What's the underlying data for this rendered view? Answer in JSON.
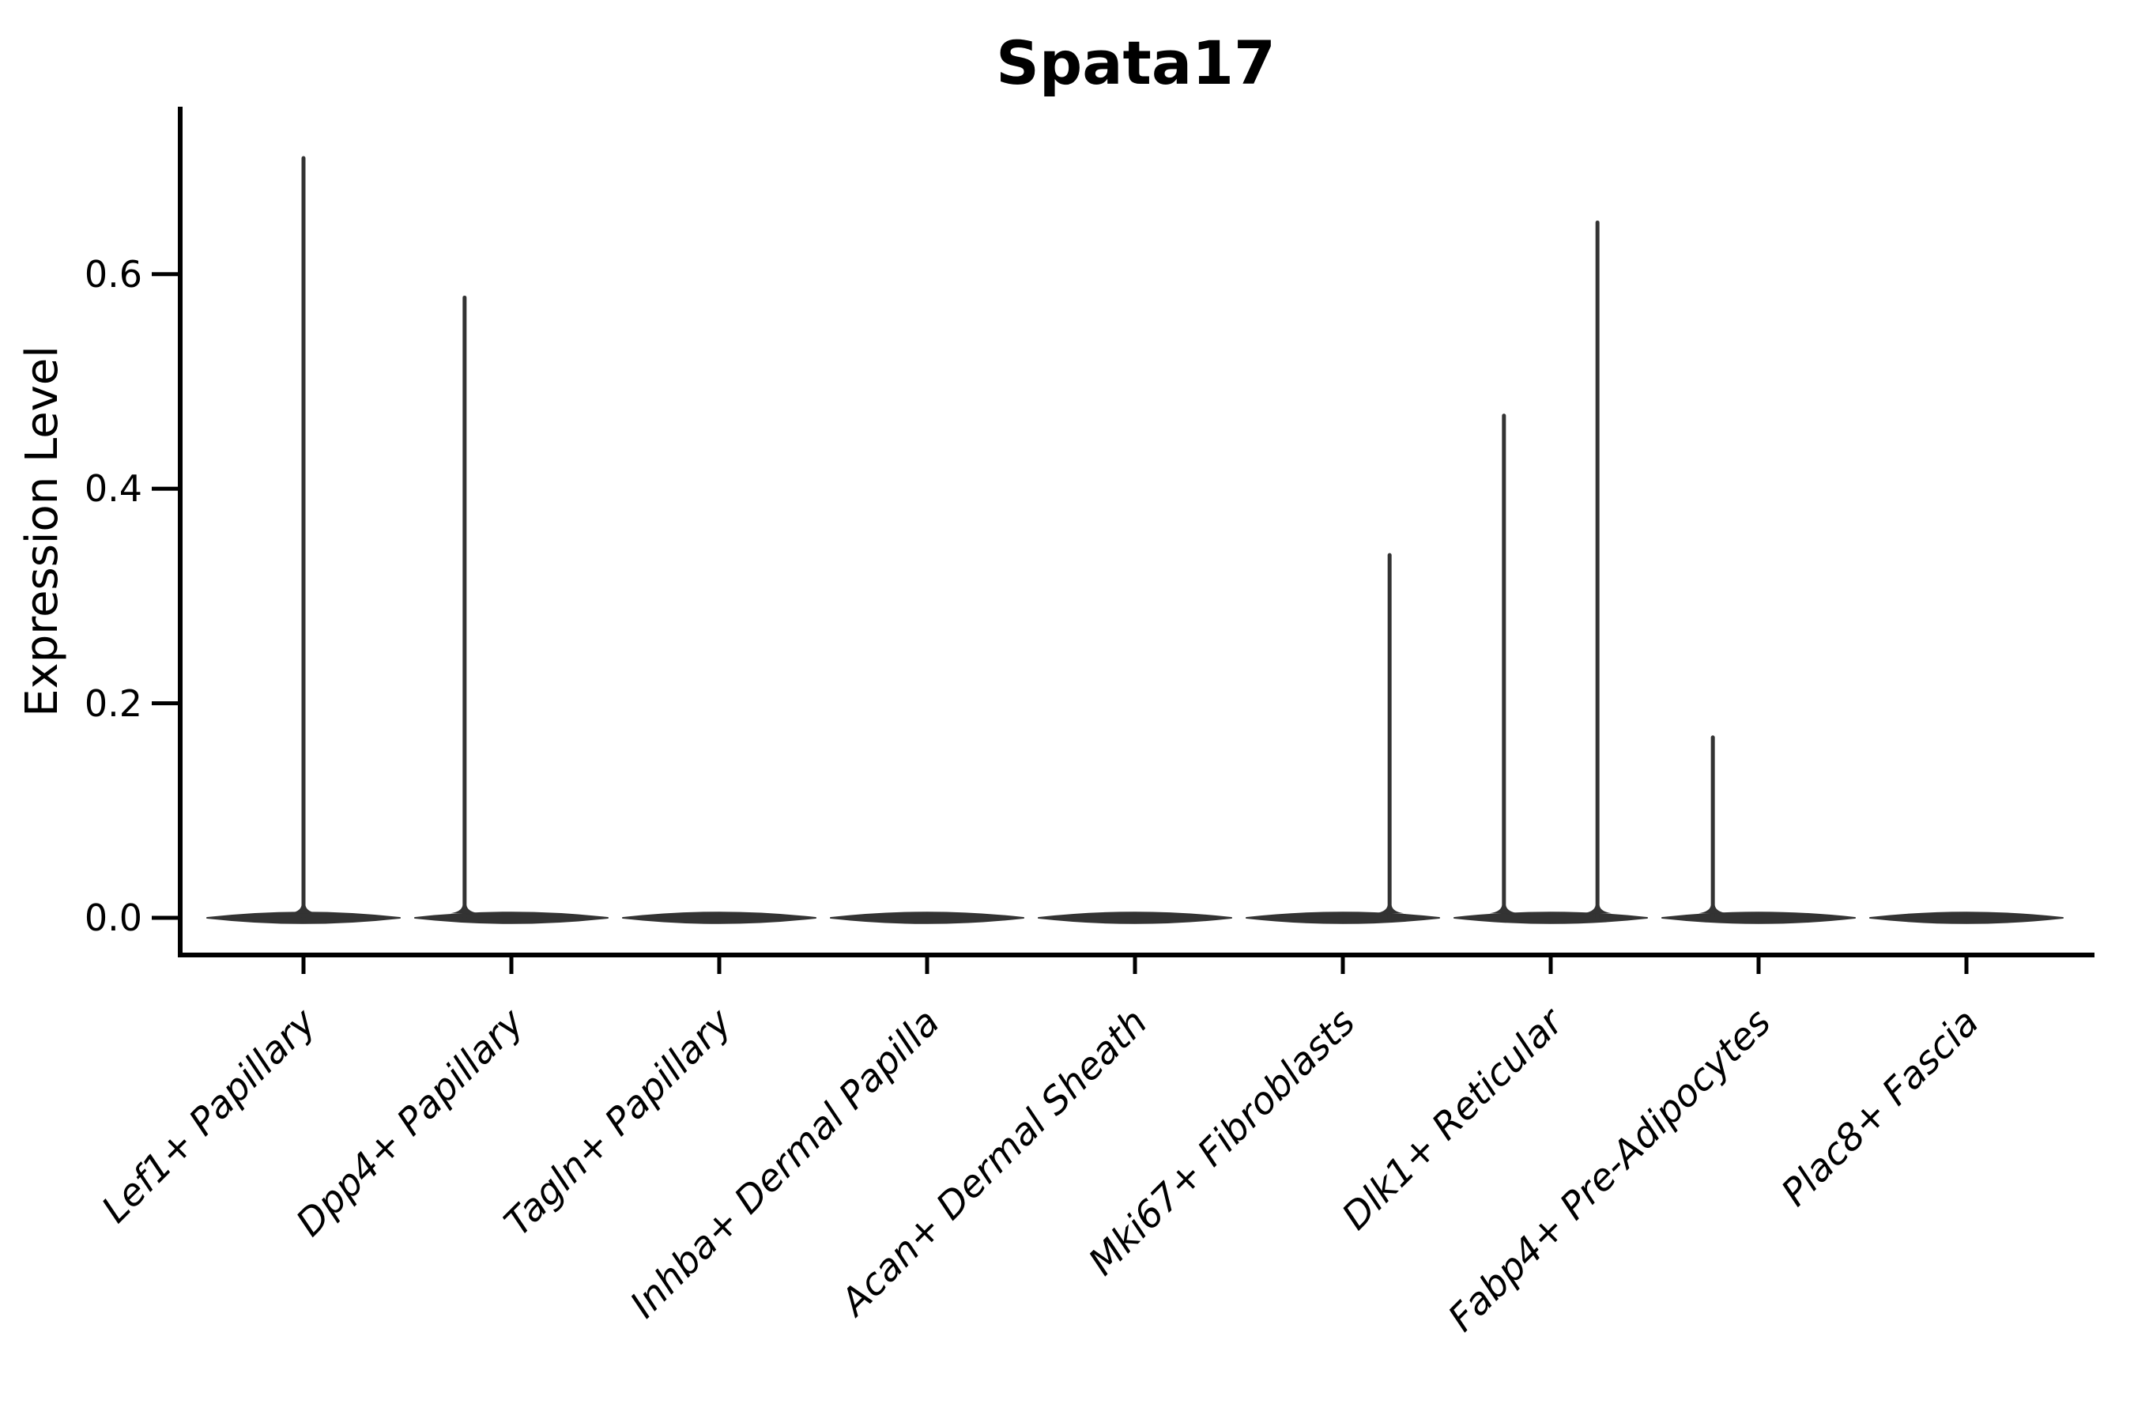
{
  "figure": {
    "background": "#ffffff",
    "axis_color": "#000000",
    "text_color": "#000000",
    "violin_color": "#333333"
  },
  "chart_data": {
    "type": "violin",
    "title": "Spata17",
    "xlabel": "",
    "ylabel": "Expression Level",
    "grid": false,
    "legend": "none",
    "ylim": [
      -0.035,
      0.755
    ],
    "yticks": [
      0.0,
      0.2,
      0.4,
      0.6
    ],
    "ytick_labels": [
      "0.0",
      "0.2",
      "0.4",
      "0.6"
    ],
    "categories": [
      "Lef1+ Papillary",
      "Dpp4+ Papillary",
      "Tagln+ Papillary",
      "Inhba+ Dermal Papilla",
      "Acan+ Dermal Sheath",
      "Mki67+ Fibroblasts",
      "Dlk1+ Reticular",
      "Fabp4+ Pre-Adipocytes",
      "Plac8+ Fascia"
    ],
    "violins": [
      {
        "category": "Lef1+ Papillary",
        "body": "flat-at-zero",
        "spikes": [
          {
            "offset": 0.0,
            "max": 0.71
          }
        ]
      },
      {
        "category": "Dpp4+ Papillary",
        "body": "flat-at-zero",
        "spikes": [
          {
            "offset": -0.225,
            "max": 0.58
          }
        ]
      },
      {
        "category": "Tagln+ Papillary",
        "body": "flat-at-zero",
        "spikes": []
      },
      {
        "category": "Inhba+ Dermal Papilla",
        "body": "flat-at-zero",
        "spikes": []
      },
      {
        "category": "Acan+ Dermal Sheath",
        "body": "flat-at-zero",
        "spikes": []
      },
      {
        "category": "Mki67+ Fibroblasts",
        "body": "flat-at-zero",
        "spikes": [
          {
            "offset": 0.225,
            "max": 0.34
          }
        ]
      },
      {
        "category": "Dlk1+ Reticular",
        "body": "flat-at-zero",
        "spikes": [
          {
            "offset": -0.225,
            "max": 0.47
          },
          {
            "offset": 0.225,
            "max": 0.65
          }
        ]
      },
      {
        "category": "Fabp4+ Pre-Adipocytes",
        "body": "flat-at-zero",
        "spikes": [
          {
            "offset": -0.22,
            "max": 0.17
          }
        ]
      },
      {
        "category": "Plac8+ Fascia",
        "body": "flat-at-zero",
        "spikes": []
      }
    ]
  }
}
